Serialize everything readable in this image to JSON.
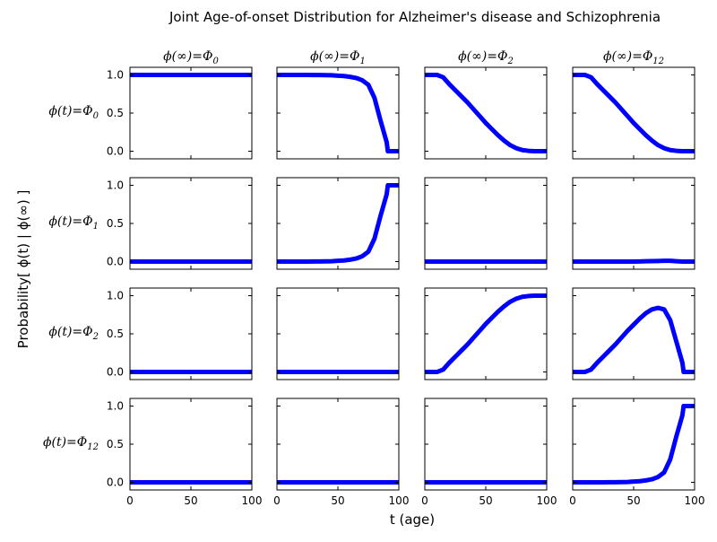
{
  "figure": {
    "title": "Joint Age-of-onset Distribution for Alzheimer's disease and Schizophrenia",
    "xlabel": "t (age)",
    "ylabel": "Probability[ ϕ(t) | ϕ(∞) ]",
    "line_color": "#0000ff"
  },
  "chart_data": {
    "type": "line",
    "layout": "4x4 grid",
    "x": [
      0,
      5,
      10,
      15,
      20,
      25,
      30,
      35,
      40,
      45,
      50,
      55,
      60,
      65,
      70,
      75,
      80,
      85,
      90,
      91,
      95,
      100
    ],
    "xlim": [
      0,
      100
    ],
    "ylim": [
      -0.1,
      1.1
    ],
    "xticks": [
      "0",
      "50",
      "100"
    ],
    "yticks": [
      "0.0",
      "0.5",
      "1.0"
    ],
    "col_labels": [
      "ϕ(∞)=Φ0",
      "ϕ(∞)=Φ1",
      "ϕ(∞)=Φ2",
      "ϕ(∞)=Φ12"
    ],
    "row_labels": [
      "ϕ(t)=Φ0",
      "ϕ(t)=Φ1",
      "ϕ(t)=Φ2",
      "ϕ(t)=Φ12"
    ],
    "panels": [
      [
        {
          "y": [
            1,
            1,
            1,
            1,
            1,
            1,
            1,
            1,
            1,
            1,
            1,
            1,
            1,
            1,
            1,
            1,
            1,
            1,
            1,
            1,
            1,
            1
          ]
        },
        {
          "y": [
            1,
            1,
            1,
            1,
            1,
            1,
            0.999,
            0.998,
            0.997,
            0.995,
            0.99,
            0.985,
            0.975,
            0.96,
            0.93,
            0.87,
            0.7,
            0.4,
            0.12,
            0,
            0,
            0
          ]
        },
        {
          "y": [
            1,
            1,
            1,
            0.97,
            0.88,
            0.8,
            0.72,
            0.64,
            0.55,
            0.46,
            0.37,
            0.29,
            0.21,
            0.14,
            0.08,
            0.04,
            0.015,
            0.005,
            0,
            0,
            0,
            0
          ]
        },
        {
          "y": [
            1,
            1,
            1,
            0.97,
            0.88,
            0.8,
            0.72,
            0.64,
            0.55,
            0.46,
            0.37,
            0.29,
            0.21,
            0.14,
            0.08,
            0.04,
            0.015,
            0.005,
            0,
            0,
            0,
            0
          ]
        }
      ],
      [
        {
          "y": [
            0,
            0,
            0,
            0,
            0,
            0,
            0,
            0,
            0,
            0,
            0,
            0,
            0,
            0,
            0,
            0,
            0,
            0,
            0,
            0,
            0,
            0
          ]
        },
        {
          "y": [
            0,
            0,
            0,
            0,
            0,
            0,
            0.001,
            0.002,
            0.003,
            0.005,
            0.01,
            0.015,
            0.025,
            0.04,
            0.07,
            0.13,
            0.3,
            0.6,
            0.88,
            1,
            1,
            1
          ]
        },
        {
          "y": [
            0,
            0,
            0,
            0,
            0,
            0,
            0,
            0,
            0,
            0,
            0,
            0,
            0,
            0,
            0,
            0,
            0,
            0,
            0,
            0,
            0,
            0
          ]
        },
        {
          "y": [
            0,
            0,
            0,
            0,
            0,
            0,
            0,
            0,
            0,
            0,
            0,
            0.002,
            0.004,
            0.006,
            0.008,
            0.01,
            0.01,
            0.005,
            0,
            0,
            0,
            0
          ]
        }
      ],
      [
        {
          "y": [
            0,
            0,
            0,
            0,
            0,
            0,
            0,
            0,
            0,
            0,
            0,
            0,
            0,
            0,
            0,
            0,
            0,
            0,
            0,
            0,
            0,
            0
          ]
        },
        {
          "y": [
            0,
            0,
            0,
            0,
            0,
            0,
            0,
            0,
            0,
            0,
            0,
            0,
            0,
            0,
            0,
            0,
            0,
            0,
            0,
            0,
            0,
            0
          ]
        },
        {
          "y": [
            0,
            0,
            0,
            0.03,
            0.12,
            0.2,
            0.28,
            0.36,
            0.45,
            0.54,
            0.63,
            0.71,
            0.79,
            0.86,
            0.92,
            0.96,
            0.985,
            0.995,
            1,
            1,
            1,
            1
          ]
        },
        {
          "y": [
            0,
            0,
            0,
            0.03,
            0.12,
            0.2,
            0.28,
            0.36,
            0.45,
            0.54,
            0.62,
            0.7,
            0.77,
            0.82,
            0.84,
            0.82,
            0.68,
            0.4,
            0.12,
            0,
            0,
            0
          ]
        }
      ],
      [
        {
          "y": [
            0,
            0,
            0,
            0,
            0,
            0,
            0,
            0,
            0,
            0,
            0,
            0,
            0,
            0,
            0,
            0,
            0,
            0,
            0,
            0,
            0,
            0
          ]
        },
        {
          "y": [
            0,
            0,
            0,
            0,
            0,
            0,
            0,
            0,
            0,
            0,
            0,
            0,
            0,
            0,
            0,
            0,
            0,
            0,
            0,
            0,
            0,
            0
          ]
        },
        {
          "y": [
            0,
            0,
            0,
            0,
            0,
            0,
            0,
            0,
            0,
            0,
            0,
            0,
            0,
            0,
            0,
            0,
            0,
            0,
            0,
            0,
            0,
            0
          ]
        },
        {
          "y": [
            0,
            0,
            0,
            0,
            0,
            0,
            0.001,
            0.002,
            0.003,
            0.005,
            0.01,
            0.015,
            0.025,
            0.04,
            0.07,
            0.13,
            0.3,
            0.6,
            0.88,
            1,
            1,
            1
          ]
        }
      ]
    ]
  }
}
